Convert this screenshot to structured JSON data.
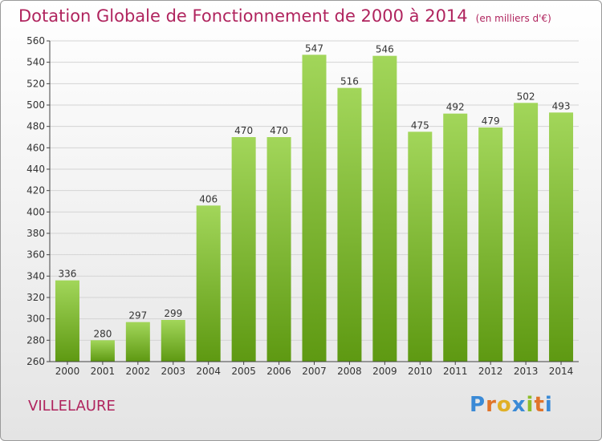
{
  "colors": {
    "title": "#b0245e",
    "bar_top": "#a2d65a",
    "bar_bottom": "#5e9912",
    "grid": "#d4d4d4",
    "axis": "#444444",
    "logo_letters": [
      "#3a8ad6",
      "#e0742a",
      "#e0b026",
      "#3a8ad6",
      "#8dbe2a",
      "#e0742a",
      "#3a8ad6"
    ]
  },
  "header": {
    "title": "Dotation Globale de Fonctionnement de 2000 à 2014",
    "subtitle": "(en milliers d'€)"
  },
  "commune": "VILLELAURE",
  "logo": {
    "text": "Proxiti"
  },
  "chart_data": {
    "type": "bar",
    "title": "Dotation Globale de Fonctionnement de 2000 à 2014",
    "subtitle": "(en milliers d'€)",
    "categories": [
      "2000",
      "2001",
      "2002",
      "2003",
      "2004",
      "2005",
      "2006",
      "2007",
      "2008",
      "2009",
      "2010",
      "2011",
      "2012",
      "2013",
      "2014"
    ],
    "values": [
      336,
      280,
      297,
      299,
      406,
      470,
      470,
      547,
      516,
      546,
      475,
      492,
      479,
      502,
      493
    ],
    "data_labels": [
      "336",
      "280",
      "297",
      "299",
      "406",
      "470",
      "470",
      "547",
      "516",
      "546",
      "475",
      "492",
      "479",
      "502",
      "493"
    ],
    "ylim": [
      260,
      560
    ],
    "yticks": [
      260,
      280,
      300,
      320,
      340,
      360,
      380,
      400,
      420,
      440,
      460,
      480,
      500,
      520,
      540,
      560
    ],
    "grid": true,
    "legend": "none"
  }
}
